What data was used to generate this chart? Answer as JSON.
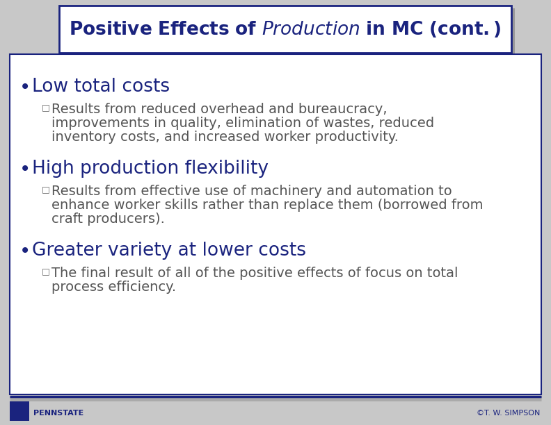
{
  "bg_color": "#c8c8c8",
  "slide_bg": "#ffffff",
  "border_color": "#1a237e",
  "title_color": "#1a237e",
  "title_fontsize": 19,
  "heading_color": "#1a237e",
  "heading_fontsize": 19,
  "sub_color": "#555555",
  "sub_fontsize": 14,
  "shield_color": "#1a237e",
  "footer_color": "#1a237e",
  "footer_bar1": "#1a237e",
  "footer_bar2": "#aaaaaa",
  "footer_left": "PENNSTATE",
  "footer_right": "©T. W. SIMPSON",
  "bullets": [
    {
      "heading": "Low total costs",
      "sub": "Results from reduced overhead and bureaucracy, improvements in quality, elimination of wastes, reduced inventory costs, and increased worker productivity.",
      "sub_lines": [
        "Results from reduced overhead and bureaucracy,",
        "improvements in quality, elimination of wastes, reduced",
        "inventory costs, and increased worker productivity."
      ]
    },
    {
      "heading": "High production flexibility",
      "sub": "Results from effective use of machinery and automation to enhance worker skills rather than replace them (borrowed from craft producers).",
      "sub_lines": [
        "Results from effective use of machinery and automation to",
        "enhance worker skills rather than replace them (borrowed from",
        "craft producers)."
      ]
    },
    {
      "heading": "Greater variety at lower costs",
      "sub": "The final result of all of the positive effects of focus on total process efficiency.",
      "sub_lines": [
        "The final result of all of the positive effects of focus on total",
        "process efficiency."
      ]
    }
  ]
}
